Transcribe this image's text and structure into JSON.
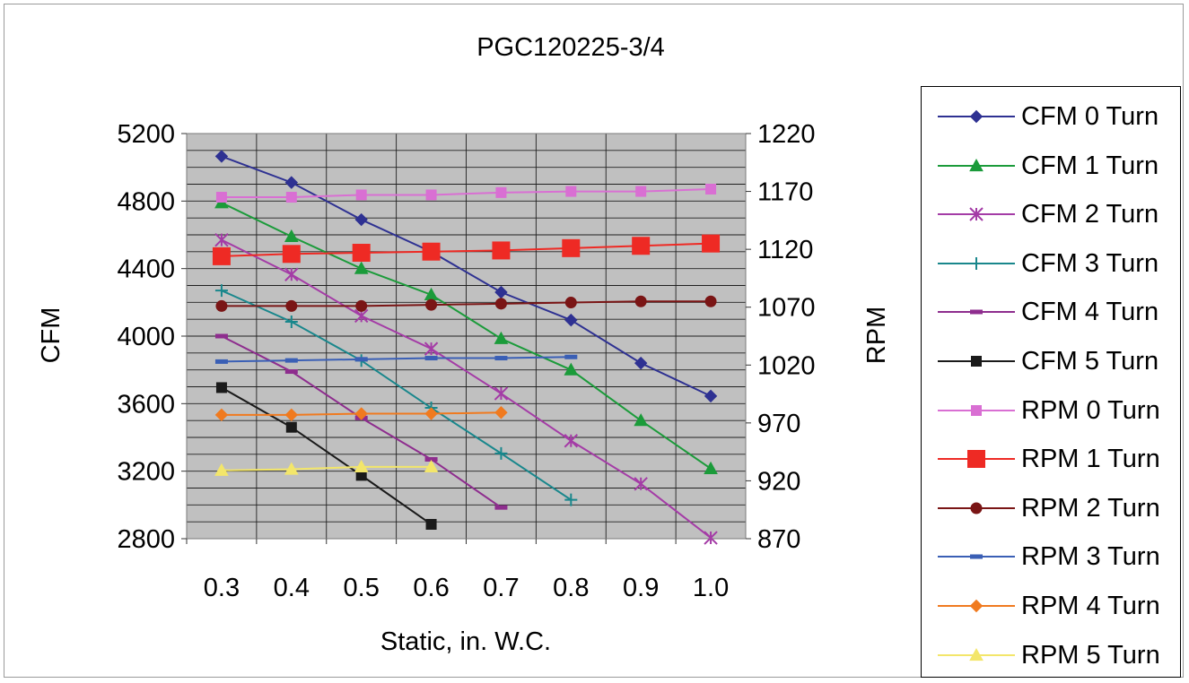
{
  "chart_data": {
    "type": "line",
    "title": "PGC120225-3/4",
    "xlabel": "Static, in. W.C.",
    "ylabel": "CFM",
    "y2label": "RPM",
    "categories": [
      "0.3",
      "0.4",
      "0.5",
      "0.6",
      "0.7",
      "0.8",
      "0.9",
      "1.0"
    ],
    "x_values": [
      0.3,
      0.4,
      0.5,
      0.6,
      0.7,
      0.8,
      0.9,
      1.0
    ],
    "ylim": [
      2800,
      5200
    ],
    "yticks": [
      2800,
      3200,
      3600,
      4000,
      4400,
      4800,
      5200
    ],
    "y2lim": [
      870,
      1220
    ],
    "y2ticks": [
      870,
      920,
      970,
      1020,
      1070,
      1120,
      1170,
      1220
    ],
    "grid": true,
    "legend_position": "right",
    "series": [
      {
        "name": "CFM 0 Turn",
        "axis": "left",
        "color": "#2e3192",
        "marker": "diamond",
        "x": [
          0.3,
          0.4,
          0.5,
          0.6,
          0.7,
          0.8,
          0.9,
          1.0
        ],
        "values": [
          5065,
          4910,
          4690,
          4500,
          4260,
          4095,
          3840,
          3645
        ]
      },
      {
        "name": "CFM 1 Turn",
        "axis": "left",
        "color": "#1b9b3a",
        "marker": "triangle",
        "x": [
          0.3,
          0.4,
          0.5,
          0.6,
          0.7,
          0.8,
          0.9,
          1.0
        ],
        "values": [
          4790,
          4590,
          4400,
          4245,
          3985,
          3800,
          3500,
          3215
        ]
      },
      {
        "name": "CFM 2 Turn",
        "axis": "left",
        "color": "#a43ca6",
        "marker": "star",
        "x": [
          0.3,
          0.4,
          0.5,
          0.6,
          0.7,
          0.8,
          0.9,
          1.0
        ],
        "values": [
          4570,
          4365,
          4120,
          3925,
          3660,
          3380,
          3125,
          2805
        ]
      },
      {
        "name": "CFM 3 Turn",
        "axis": "left",
        "color": "#19878c",
        "marker": "plus",
        "x": [
          0.3,
          0.4,
          0.5,
          0.6,
          0.7,
          0.8
        ],
        "values": [
          4270,
          4085,
          3855,
          3575,
          3305,
          3030
        ]
      },
      {
        "name": "CFM 4 Turn",
        "axis": "left",
        "color": "#8e2d8e",
        "marker": "dash",
        "x": [
          0.3,
          0.4,
          0.5,
          0.6,
          0.7
        ],
        "values": [
          4000,
          3790,
          3515,
          3270,
          2985
        ]
      },
      {
        "name": "CFM 5 Turn",
        "axis": "left",
        "color": "#1a1a1a",
        "marker": "square",
        "x": [
          0.3,
          0.4,
          0.5,
          0.6
        ],
        "values": [
          3695,
          3460,
          3175,
          2885
        ]
      },
      {
        "name": "RPM 0 Turn",
        "axis": "right",
        "color": "#d96fd3",
        "marker": "square",
        "x": [
          0.3,
          0.4,
          0.5,
          0.6,
          0.7,
          0.8,
          0.9,
          1.0
        ],
        "values": [
          1165,
          1165,
          1167,
          1167,
          1169,
          1170,
          1170,
          1172
        ]
      },
      {
        "name": "RPM 1 Turn",
        "axis": "right",
        "color": "#ee2a24",
        "marker": "square-large",
        "x": [
          0.3,
          0.4,
          0.5,
          0.6,
          0.7,
          0.8,
          0.9,
          1.0
        ],
        "values": [
          1114,
          1116,
          1117,
          1118,
          1119,
          1121,
          1123,
          1125
        ]
      },
      {
        "name": "RPM 2 Turn",
        "axis": "right",
        "color": "#7a1515",
        "marker": "circle",
        "x": [
          0.3,
          0.4,
          0.5,
          0.6,
          0.7,
          0.8,
          0.9,
          1.0
        ],
        "values": [
          1071,
          1071,
          1071,
          1072,
          1073,
          1074,
          1075,
          1075
        ]
      },
      {
        "name": "RPM 3 Turn",
        "axis": "right",
        "color": "#3a5fb5",
        "marker": "dash",
        "x": [
          0.3,
          0.4,
          0.5,
          0.6,
          0.7,
          0.8
        ],
        "values": [
          1023,
          1024,
          1025,
          1026,
          1026,
          1027
        ]
      },
      {
        "name": "RPM 4 Turn",
        "axis": "right",
        "color": "#f07a1f",
        "marker": "diamond",
        "x": [
          0.3,
          0.4,
          0.5,
          0.6,
          0.7
        ],
        "values": [
          977,
          977,
          978,
          978,
          979
        ]
      },
      {
        "name": "RPM 5 Turn",
        "axis": "right",
        "color": "#f3e66a",
        "marker": "triangle",
        "x": [
          0.3,
          0.4,
          0.5,
          0.6
        ],
        "values": [
          929,
          930,
          932,
          932
        ]
      }
    ]
  }
}
